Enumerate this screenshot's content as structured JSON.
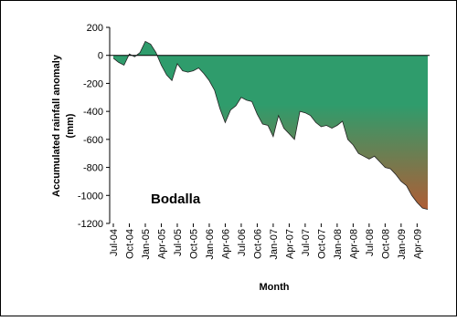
{
  "chart_data": {
    "type": "area",
    "ylabel": [
      "Accumulated rainfall anomaly",
      "(mm)"
    ],
    "xlabel": "Month",
    "annotation": "Bodalla",
    "categories": [
      "Jul-04",
      null,
      null,
      "Oct-04",
      null,
      null,
      "Jan-05",
      null,
      null,
      "Apr-05",
      null,
      null,
      "Jul-05",
      null,
      null,
      "Oct-05",
      null,
      null,
      "Jan-06",
      null,
      null,
      "Apr-06",
      null,
      null,
      "Jul-06",
      null,
      null,
      "Oct-06",
      null,
      null,
      "Jan-07",
      null,
      null,
      "Apr-07",
      null,
      null,
      "Jul-07",
      null,
      null,
      "Oct-07",
      null,
      null,
      "Jan-08",
      null,
      null,
      "Apr-08",
      null,
      null,
      "Jul-08",
      null,
      null,
      "Oct-08",
      null,
      null,
      "Jan-09",
      null,
      null,
      "Apr-09",
      null,
      null
    ],
    "values": [
      -20,
      -50,
      -70,
      10,
      -10,
      20,
      100,
      80,
      20,
      -70,
      -140,
      -180,
      -60,
      -110,
      -120,
      -110,
      -90,
      -130,
      -180,
      -250,
      -380,
      -480,
      -390,
      -360,
      -300,
      -320,
      -330,
      -420,
      -490,
      -500,
      -580,
      -430,
      -520,
      -560,
      -600,
      -400,
      -410,
      -430,
      -480,
      -510,
      -500,
      -520,
      -500,
      -470,
      -600,
      -640,
      -700,
      -720,
      -740,
      -720,
      -760,
      -800,
      -810,
      -850,
      -900,
      -930,
      -1000,
      -1050,
      -1090,
      -1100
    ],
    "colors": [
      "#2f9c6c",
      "#c0552e"
    ],
    "ylim": [
      -1200,
      200
    ],
    "yticks": [
      200,
      0,
      -200,
      -400,
      -600,
      -800,
      -1000,
      -1200
    ]
  }
}
